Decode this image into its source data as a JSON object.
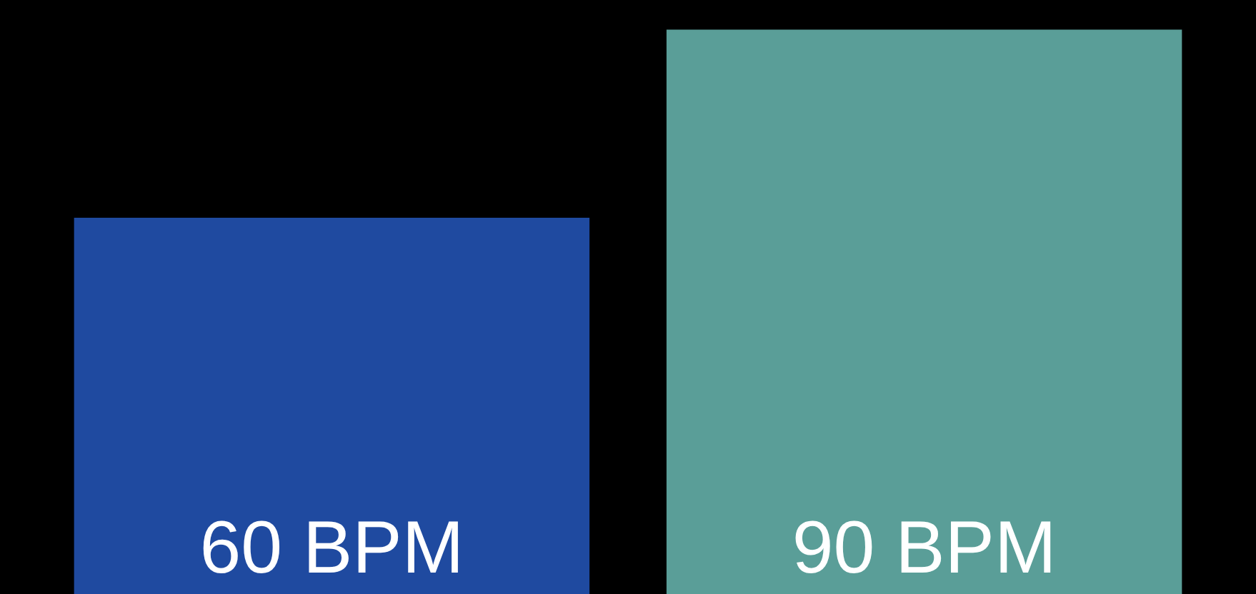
{
  "chart_data": {
    "type": "bar",
    "categories": [
      null,
      null
    ],
    "values": [
      60,
      90
    ],
    "colors": [
      "#1f4aa0",
      "#5a9e98"
    ],
    "value_labels": [
      "60 BPM",
      "90 BPM"
    ],
    "tick_labels": false,
    "grid": false,
    "legend": false
  }
}
